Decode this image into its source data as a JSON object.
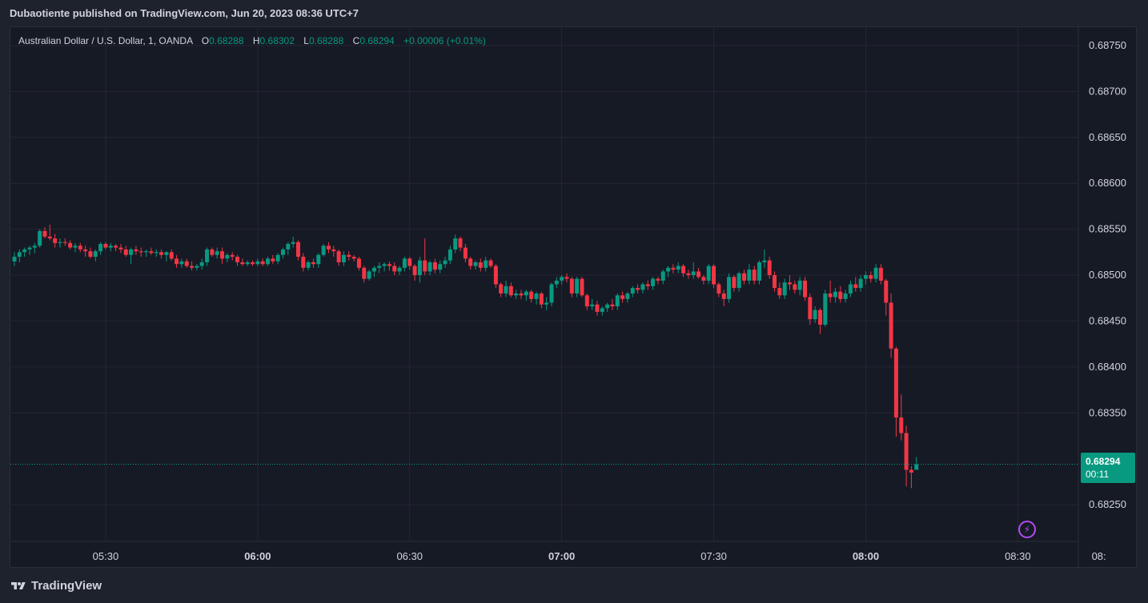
{
  "header": {
    "publish_line": "Dubaotiente published on TradingView.com, Jun 20, 2023 08:36 UTC+7"
  },
  "legend": {
    "symbol": "Australian Dollar / U.S. Dollar, 1, OANDA",
    "o_label": "O",
    "o_value": "0.68288",
    "h_label": "H",
    "h_value": "0.68302",
    "l_label": "L",
    "l_value": "0.68288",
    "c_label": "C",
    "c_value": "0.68294",
    "change": "+0.00006 (+0.01%)"
  },
  "price_badge": {
    "price": "0.68294",
    "countdown": "00:11"
  },
  "footer": {
    "brand": "TradingView"
  },
  "colors": {
    "up": "#089981",
    "down": "#f23645",
    "background": "#161a25",
    "grid": "#242733",
    "text": "#d1d4dc",
    "accent_alert": "#b24bf3"
  },
  "icons": {
    "alert": "lightning-icon",
    "logo": "tradingview-logo-icon"
  },
  "chart_data": {
    "type": "candlestick",
    "symbol": "Australian Dollar / U.S. Dollar",
    "interval": "1",
    "source": "OANDA",
    "ylim": [
      0.6821,
      0.6877
    ],
    "y_ticks": [
      "0.68750",
      "0.68700",
      "0.68650",
      "0.68600",
      "0.68550",
      "0.68500",
      "0.68450",
      "0.68400",
      "0.68350",
      "0.68250"
    ],
    "y_tick_values": [
      0.6875,
      0.687,
      0.6865,
      0.686,
      0.6855,
      0.685,
      0.6845,
      0.684,
      0.6835,
      0.6825
    ],
    "x_ticks": [
      {
        "label": "05:30",
        "t": 18,
        "bold": false
      },
      {
        "label": "06:00",
        "t": 48,
        "bold": true
      },
      {
        "label": "06:30",
        "t": 78,
        "bold": false
      },
      {
        "label": "07:00",
        "t": 108,
        "bold": true
      },
      {
        "label": "07:30",
        "t": 138,
        "bold": false
      },
      {
        "label": "08:00",
        "t": 168,
        "bold": true
      },
      {
        "label": "08:30",
        "t": 198,
        "bold": false
      },
      {
        "label": "08:",
        "t": 214,
        "bold": false
      }
    ],
    "last_price": 0.68294,
    "grid": true,
    "candles_ohlc": [
      [
        0.68515,
        0.68525,
        0.6851,
        0.6852
      ],
      [
        0.6852,
        0.68528,
        0.68514,
        0.68525
      ],
      [
        0.68525,
        0.6853,
        0.6852,
        0.68528
      ],
      [
        0.68528,
        0.68532,
        0.68522,
        0.6853
      ],
      [
        0.6853,
        0.68535,
        0.68524,
        0.68532
      ],
      [
        0.68532,
        0.6855,
        0.6853,
        0.68548
      ],
      [
        0.68548,
        0.68552,
        0.6854,
        0.68542
      ],
      [
        0.68542,
        0.68555,
        0.68538,
        0.6854
      ],
      [
        0.6854,
        0.68545,
        0.6853,
        0.68535
      ],
      [
        0.68535,
        0.6854,
        0.6853,
        0.68536
      ],
      [
        0.68536,
        0.6854,
        0.68532,
        0.68535
      ],
      [
        0.68535,
        0.68538,
        0.68528,
        0.6853
      ],
      [
        0.6853,
        0.68535,
        0.68525,
        0.68532
      ],
      [
        0.68532,
        0.68535,
        0.68525,
        0.68528
      ],
      [
        0.68528,
        0.68532,
        0.6852,
        0.68526
      ],
      [
        0.68526,
        0.6853,
        0.68518,
        0.6852
      ],
      [
        0.6852,
        0.68528,
        0.68515,
        0.68526
      ],
      [
        0.68526,
        0.68536,
        0.68522,
        0.68534
      ],
      [
        0.68534,
        0.68536,
        0.68528,
        0.6853
      ],
      [
        0.6853,
        0.68535,
        0.68526,
        0.68532
      ],
      [
        0.68532,
        0.68534,
        0.68526,
        0.6853
      ],
      [
        0.6853,
        0.68534,
        0.68524,
        0.68528
      ],
      [
        0.68528,
        0.68532,
        0.6852,
        0.68522
      ],
      [
        0.68522,
        0.6853,
        0.68512,
        0.68528
      ],
      [
        0.68528,
        0.68532,
        0.68522,
        0.68526
      ],
      [
        0.68526,
        0.6853,
        0.6852,
        0.68525
      ],
      [
        0.68525,
        0.68528,
        0.6852,
        0.68526
      ],
      [
        0.68526,
        0.6853,
        0.68522,
        0.68524
      ],
      [
        0.68524,
        0.68528,
        0.6852,
        0.68525
      ],
      [
        0.68525,
        0.68528,
        0.68518,
        0.68522
      ],
      [
        0.68522,
        0.68526,
        0.68515,
        0.68525
      ],
      [
        0.68525,
        0.68528,
        0.68516,
        0.68518
      ],
      [
        0.68518,
        0.68522,
        0.68508,
        0.68512
      ],
      [
        0.68512,
        0.68518,
        0.68508,
        0.68515
      ],
      [
        0.68515,
        0.68518,
        0.68508,
        0.6851
      ],
      [
        0.6851,
        0.68515,
        0.68505,
        0.68508
      ],
      [
        0.68508,
        0.68512,
        0.68505,
        0.6851
      ],
      [
        0.6851,
        0.68518,
        0.68506,
        0.68514
      ],
      [
        0.68514,
        0.6853,
        0.6851,
        0.68528
      ],
      [
        0.68528,
        0.6853,
        0.6852,
        0.68522
      ],
      [
        0.68522,
        0.6853,
        0.68518,
        0.68526
      ],
      [
        0.68526,
        0.6853,
        0.68512,
        0.68518
      ],
      [
        0.68518,
        0.68524,
        0.68514,
        0.68522
      ],
      [
        0.68522,
        0.68525,
        0.68516,
        0.6852
      ],
      [
        0.6852,
        0.68522,
        0.6851,
        0.68514
      ],
      [
        0.68514,
        0.68518,
        0.6851,
        0.68512
      ],
      [
        0.68512,
        0.68516,
        0.6851,
        0.68514
      ],
      [
        0.68514,
        0.68516,
        0.6851,
        0.68512
      ],
      [
        0.68512,
        0.68518,
        0.6851,
        0.68515
      ],
      [
        0.68515,
        0.68518,
        0.6851,
        0.68512
      ],
      [
        0.68512,
        0.6852,
        0.6851,
        0.68518
      ],
      [
        0.68518,
        0.68522,
        0.68512,
        0.68515
      ],
      [
        0.68515,
        0.68524,
        0.68512,
        0.68522
      ],
      [
        0.68522,
        0.6853,
        0.68518,
        0.68528
      ],
      [
        0.68528,
        0.68536,
        0.68522,
        0.68534
      ],
      [
        0.68534,
        0.68542,
        0.6853,
        0.68536
      ],
      [
        0.68536,
        0.68538,
        0.68516,
        0.6852
      ],
      [
        0.6852,
        0.68524,
        0.68504,
        0.68508
      ],
      [
        0.68508,
        0.68516,
        0.68505,
        0.68514
      ],
      [
        0.68514,
        0.68518,
        0.68508,
        0.68512
      ],
      [
        0.68512,
        0.68524,
        0.68508,
        0.68522
      ],
      [
        0.68522,
        0.68534,
        0.6852,
        0.68532
      ],
      [
        0.68532,
        0.68536,
        0.68524,
        0.68528
      ],
      [
        0.68528,
        0.68532,
        0.6852,
        0.68526
      ],
      [
        0.68526,
        0.68528,
        0.6851,
        0.68514
      ],
      [
        0.68514,
        0.68526,
        0.6851,
        0.68522
      ],
      [
        0.68522,
        0.68526,
        0.68516,
        0.6852
      ],
      [
        0.6852,
        0.68522,
        0.68515,
        0.68518
      ],
      [
        0.68518,
        0.6852,
        0.68505,
        0.68508
      ],
      [
        0.68508,
        0.6851,
        0.68492,
        0.68496
      ],
      [
        0.68496,
        0.68506,
        0.68494,
        0.68504
      ],
      [
        0.68504,
        0.6851,
        0.68498,
        0.68508
      ],
      [
        0.68508,
        0.68514,
        0.68502,
        0.6851
      ],
      [
        0.6851,
        0.68514,
        0.68504,
        0.68512
      ],
      [
        0.68512,
        0.68515,
        0.68505,
        0.6851
      ],
      [
        0.6851,
        0.68514,
        0.685,
        0.68504
      ],
      [
        0.68504,
        0.6851,
        0.685,
        0.68508
      ],
      [
        0.68508,
        0.6852,
        0.68504,
        0.68518
      ],
      [
        0.68518,
        0.6852,
        0.68506,
        0.6851
      ],
      [
        0.6851,
        0.68512,
        0.68494,
        0.685
      ],
      [
        0.685,
        0.6852,
        0.68492,
        0.68516
      ],
      [
        0.68516,
        0.6854,
        0.685,
        0.68504
      ],
      [
        0.68504,
        0.68516,
        0.685,
        0.68514
      ],
      [
        0.68514,
        0.68518,
        0.68502,
        0.68506
      ],
      [
        0.68506,
        0.68516,
        0.68502,
        0.68512
      ],
      [
        0.68512,
        0.6852,
        0.68508,
        0.68516
      ],
      [
        0.68516,
        0.68532,
        0.68512,
        0.68528
      ],
      [
        0.68528,
        0.68544,
        0.68524,
        0.6854
      ],
      [
        0.6854,
        0.68542,
        0.68526,
        0.6853
      ],
      [
        0.6853,
        0.68534,
        0.68514,
        0.68518
      ],
      [
        0.68518,
        0.6852,
        0.68506,
        0.6851
      ],
      [
        0.6851,
        0.68516,
        0.68506,
        0.68514
      ],
      [
        0.68514,
        0.68518,
        0.68504,
        0.68508
      ],
      [
        0.68508,
        0.6852,
        0.68504,
        0.68516
      ],
      [
        0.68516,
        0.68518,
        0.68508,
        0.6851
      ],
      [
        0.6851,
        0.68512,
        0.68486,
        0.6849
      ],
      [
        0.6849,
        0.68492,
        0.68476,
        0.6848
      ],
      [
        0.6848,
        0.68494,
        0.68476,
        0.68488
      ],
      [
        0.68488,
        0.68492,
        0.68476,
        0.68478
      ],
      [
        0.68478,
        0.68484,
        0.68474,
        0.6848
      ],
      [
        0.6848,
        0.68484,
        0.68474,
        0.68478
      ],
      [
        0.68478,
        0.68484,
        0.68472,
        0.68482
      ],
      [
        0.68482,
        0.68484,
        0.6847,
        0.68474
      ],
      [
        0.68474,
        0.68482,
        0.68468,
        0.6848
      ],
      [
        0.6848,
        0.68482,
        0.68464,
        0.68468
      ],
      [
        0.68468,
        0.68476,
        0.68462,
        0.6847
      ],
      [
        0.6847,
        0.68492,
        0.68466,
        0.6849
      ],
      [
        0.6849,
        0.68498,
        0.68486,
        0.68494
      ],
      [
        0.68494,
        0.685,
        0.6849,
        0.68498
      ],
      [
        0.68498,
        0.68502,
        0.68492,
        0.68496
      ],
      [
        0.68496,
        0.68498,
        0.68476,
        0.6848
      ],
      [
        0.6848,
        0.68498,
        0.68476,
        0.68496
      ],
      [
        0.68496,
        0.68498,
        0.68476,
        0.68478
      ],
      [
        0.68478,
        0.6848,
        0.68462,
        0.68466
      ],
      [
        0.68466,
        0.68474,
        0.68462,
        0.68468
      ],
      [
        0.68468,
        0.68472,
        0.68456,
        0.6846
      ],
      [
        0.6846,
        0.68466,
        0.68456,
        0.68464
      ],
      [
        0.68464,
        0.6847,
        0.6846,
        0.68468
      ],
      [
        0.68468,
        0.68474,
        0.68462,
        0.68466
      ],
      [
        0.68466,
        0.6848,
        0.68462,
        0.68478
      ],
      [
        0.68478,
        0.68482,
        0.6847,
        0.68474
      ],
      [
        0.68474,
        0.68482,
        0.6847,
        0.6848
      ],
      [
        0.6848,
        0.68488,
        0.68476,
        0.68486
      ],
      [
        0.68486,
        0.6849,
        0.6848,
        0.68484
      ],
      [
        0.68484,
        0.68492,
        0.6848,
        0.6849
      ],
      [
        0.6849,
        0.68494,
        0.68484,
        0.68488
      ],
      [
        0.68488,
        0.68498,
        0.68484,
        0.68496
      ],
      [
        0.68496,
        0.68498,
        0.6849,
        0.68494
      ],
      [
        0.68494,
        0.68506,
        0.6849,
        0.68504
      ],
      [
        0.68504,
        0.6851,
        0.68498,
        0.68508
      ],
      [
        0.68508,
        0.68512,
        0.68502,
        0.68506
      ],
      [
        0.68506,
        0.68514,
        0.68502,
        0.6851
      ],
      [
        0.6851,
        0.68512,
        0.68498,
        0.68502
      ],
      [
        0.68502,
        0.68506,
        0.68496,
        0.685
      ],
      [
        0.685,
        0.68514,
        0.68496,
        0.68504
      ],
      [
        0.68504,
        0.68508,
        0.68496,
        0.68498
      ],
      [
        0.68498,
        0.685,
        0.6849,
        0.68494
      ],
      [
        0.68494,
        0.68512,
        0.6849,
        0.6851
      ],
      [
        0.6851,
        0.68512,
        0.68486,
        0.6849
      ],
      [
        0.6849,
        0.68492,
        0.68476,
        0.6848
      ],
      [
        0.6848,
        0.68484,
        0.68466,
        0.68474
      ],
      [
        0.68474,
        0.68502,
        0.6847,
        0.68498
      ],
      [
        0.68498,
        0.685,
        0.68482,
        0.68486
      ],
      [
        0.68486,
        0.68504,
        0.68482,
        0.68502
      ],
      [
        0.68502,
        0.68506,
        0.6849,
        0.68494
      ],
      [
        0.68494,
        0.68512,
        0.6849,
        0.68506
      ],
      [
        0.68506,
        0.6851,
        0.6849,
        0.68494
      ],
      [
        0.68494,
        0.68516,
        0.6849,
        0.68514
      ],
      [
        0.68514,
        0.68528,
        0.68508,
        0.68516
      ],
      [
        0.68516,
        0.6852,
        0.68496,
        0.685
      ],
      [
        0.685,
        0.68504,
        0.68482,
        0.68486
      ],
      [
        0.68486,
        0.68492,
        0.68474,
        0.68478
      ],
      [
        0.68478,
        0.68496,
        0.68474,
        0.68492
      ],
      [
        0.68492,
        0.685,
        0.68484,
        0.6849
      ],
      [
        0.6849,
        0.68494,
        0.6848,
        0.68484
      ],
      [
        0.68484,
        0.68498,
        0.68478,
        0.68494
      ],
      [
        0.68494,
        0.68498,
        0.68472,
        0.68476
      ],
      [
        0.68476,
        0.6848,
        0.68446,
        0.68452
      ],
      [
        0.68452,
        0.68466,
        0.68448,
        0.68462
      ],
      [
        0.68462,
        0.68464,
        0.68436,
        0.68446
      ],
      [
        0.68446,
        0.68484,
        0.68444,
        0.6848
      ],
      [
        0.6848,
        0.68494,
        0.6847,
        0.68476
      ],
      [
        0.68476,
        0.68486,
        0.6847,
        0.68482
      ],
      [
        0.68482,
        0.68488,
        0.6847,
        0.68474
      ],
      [
        0.68474,
        0.68484,
        0.6847,
        0.6848
      ],
      [
        0.6848,
        0.68494,
        0.68476,
        0.6849
      ],
      [
        0.6849,
        0.68498,
        0.68482,
        0.68486
      ],
      [
        0.68486,
        0.685,
        0.68482,
        0.68496
      ],
      [
        0.68496,
        0.68504,
        0.6849,
        0.685
      ],
      [
        0.685,
        0.68504,
        0.68492,
        0.68496
      ],
      [
        0.68496,
        0.68512,
        0.68492,
        0.68508
      ],
      [
        0.68508,
        0.68512,
        0.6849,
        0.68494
      ],
      [
        0.68494,
        0.68496,
        0.68456,
        0.6847
      ],
      [
        0.6847,
        0.6848,
        0.6841,
        0.6842
      ],
      [
        0.6842,
        0.68422,
        0.68324,
        0.68345
      ],
      [
        0.68345,
        0.6837,
        0.6832,
        0.68328
      ],
      [
        0.68328,
        0.68336,
        0.6827,
        0.68288
      ],
      [
        0.68288,
        0.68292,
        0.68268,
        0.68285
      ],
      [
        0.68288,
        0.68302,
        0.68288,
        0.68294
      ]
    ]
  }
}
